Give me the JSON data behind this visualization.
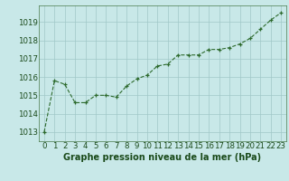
{
  "hours": [
    0,
    1,
    2,
    3,
    4,
    5,
    6,
    7,
    8,
    9,
    10,
    11,
    12,
    13,
    14,
    15,
    16,
    17,
    18,
    19,
    20,
    21,
    22,
    23
  ],
  "pressure": [
    1013.0,
    1015.8,
    1015.6,
    1014.6,
    1014.6,
    1015.0,
    1015.0,
    1014.9,
    1015.5,
    1015.9,
    1016.1,
    1016.6,
    1016.7,
    1017.2,
    1017.2,
    1017.2,
    1017.5,
    1017.5,
    1017.6,
    1017.8,
    1018.1,
    1018.6,
    1019.1,
    1019.5
  ],
  "line_color": "#2d6a2d",
  "marker_color": "#2d6a2d",
  "bg_color": "#c8e8e8",
  "grid_color": "#a0c8c8",
  "ylabel_ticks": [
    1013,
    1014,
    1015,
    1016,
    1017,
    1018,
    1019
  ],
  "xlabel": "Graphe pression niveau de la mer (hPa)",
  "xlabel_color": "#1a4a1a",
  "ylim": [
    1012.5,
    1019.9
  ],
  "xlim": [
    -0.5,
    23.5
  ],
  "font_size_xlabel": 7.0,
  "font_size_ticks": 6.2
}
